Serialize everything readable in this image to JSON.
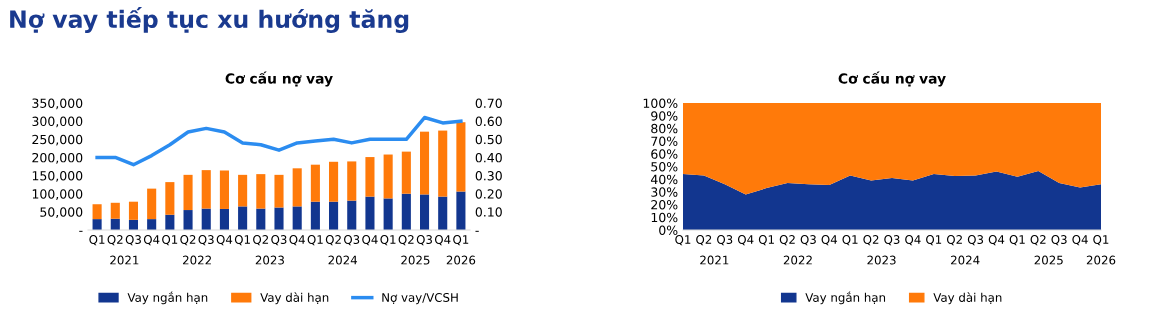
{
  "chart_data": [
    {
      "type": "bar",
      "title": "Cơ cấu nợ vay",
      "stacked": true,
      "legend": "bottom",
      "grid": false,
      "categories": [
        "Q1",
        "Q2",
        "Q3",
        "Q4",
        "Q1",
        "Q2",
        "Q3",
        "Q4",
        "Q1",
        "Q2",
        "Q3",
        "Q4",
        "Q1",
        "Q2",
        "Q3",
        "Q4",
        "Q1",
        "Q2",
        "Q3",
        "Q4",
        "Q1"
      ],
      "series": [
        {
          "name": "Vay ngắn hạn",
          "color": "#12368f",
          "values": [
            30000,
            31000,
            28000,
            30000,
            42000,
            55000,
            59000,
            58000,
            65000,
            59000,
            62000,
            65000,
            78000,
            78000,
            81000,
            92000,
            87000,
            100000,
            98000,
            92000,
            106000
          ]
        },
        {
          "name": "Vay dài hạn",
          "color": "#ff7a0a",
          "values": [
            41000,
            44000,
            50000,
            84000,
            90000,
            97000,
            106000,
            106000,
            87000,
            95000,
            90000,
            105000,
            102000,
            110000,
            108000,
            109000,
            121000,
            116000,
            173000,
            182000,
            191000
          ]
        },
        {
          "name": "Nợ vay/VCSH",
          "color": "#2b8cf0",
          "type": "line",
          "axis": "y2",
          "values": [
            0.4,
            0.4,
            0.36,
            0.41,
            0.47,
            0.54,
            0.56,
            0.54,
            0.48,
            0.47,
            0.44,
            0.48,
            0.49,
            0.5,
            0.48,
            0.5,
            0.5,
            0.5,
            0.62,
            0.59,
            0.6
          ]
        }
      ],
      "ylim": [
        0,
        350000
      ],
      "yticks": [
        {
          "value": 0,
          "label": "-"
        },
        {
          "value": 50000,
          "label": "50,000"
        },
        {
          "value": 100000,
          "label": "100,000"
        },
        {
          "value": 150000,
          "label": "150,000"
        },
        {
          "value": 200000,
          "label": "200,000"
        },
        {
          "value": 250000,
          "label": "250,000"
        },
        {
          "value": 300000,
          "label": "300,000"
        },
        {
          "value": 350000,
          "label": "350,000"
        }
      ],
      "y2lim": [
        0,
        0.7
      ],
      "y2ticks": [
        {
          "value": 0,
          "label": "-"
        },
        {
          "value": 0.1,
          "label": "0.10"
        },
        {
          "value": 0.2,
          "label": "0.20"
        },
        {
          "value": 0.3,
          "label": "0.30"
        },
        {
          "value": 0.4,
          "label": "0.40"
        },
        {
          "value": 0.5,
          "label": "0.50"
        },
        {
          "value": 0.6,
          "label": "0.60"
        },
        {
          "value": 0.7,
          "label": "0.70"
        }
      ],
      "annotations": [
        "Nợ vay tiếp tục xu hướng tăng",
        "2021",
        "2022",
        "2023",
        "2024",
        "2025",
        "2026"
      ]
    },
    {
      "type": "area",
      "title": "Cơ cấu nợ vay",
      "stacked": true,
      "legend": "bottom",
      "grid": false,
      "categories": [
        "Q1",
        "Q2",
        "Q3",
        "Q4",
        "Q1",
        "Q2",
        "Q3",
        "Q4",
        "Q1",
        "Q2",
        "Q3",
        "Q4",
        "Q1",
        "Q2",
        "Q3",
        "Q4",
        "Q1",
        "Q2",
        "Q3",
        "Q4",
        "Q1"
      ],
      "series": [
        {
          "name": "Vay ngắn hạn",
          "color": "#12368f",
          "values": [
            44,
            43,
            36,
            28,
            33,
            37,
            36,
            35.5,
            43,
            39,
            41,
            39,
            44,
            42.5,
            43,
            46,
            42,
            46.5,
            37,
            33.5,
            36
          ]
        },
        {
          "name": "Vay dài hạn",
          "color": "#ff7a0a",
          "values": [
            56,
            57,
            64,
            72,
            67,
            63,
            64,
            64.5,
            57,
            61,
            59,
            61,
            56,
            57.5,
            57,
            54,
            58,
            53.5,
            63,
            66.5,
            64
          ]
        }
      ],
      "ylim": [
        0,
        100
      ],
      "yticks": [
        {
          "value": 0,
          "label": "0%"
        },
        {
          "value": 10,
          "label": "10%"
        },
        {
          "value": 20,
          "label": "20%"
        },
        {
          "value": 30,
          "label": "30%"
        },
        {
          "value": 40,
          "label": "40%"
        },
        {
          "value": 50,
          "label": "50%"
        },
        {
          "value": 60,
          "label": "60%"
        },
        {
          "value": 70,
          "label": "70%"
        },
        {
          "value": 80,
          "label": "80%"
        },
        {
          "value": 90,
          "label": "90%"
        },
        {
          "value": 100,
          "label": "100%"
        }
      ],
      "annotations": [
        "2021",
        "2022",
        "2023",
        "2024",
        "2025",
        "2026"
      ]
    }
  ]
}
